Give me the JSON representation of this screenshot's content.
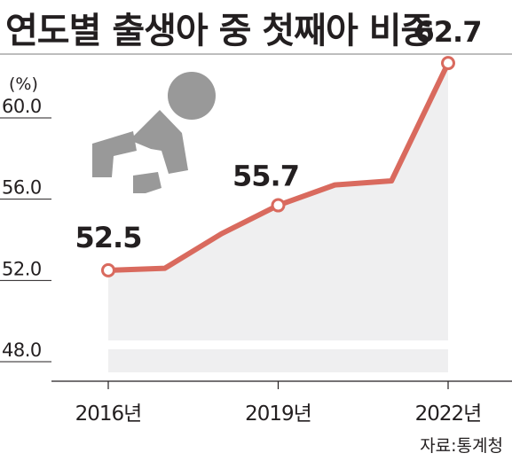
{
  "title": "연도별 출생아 중 첫째아 비중",
  "source": "자료:통계청",
  "icon": "baby-crawling-icon",
  "colors": {
    "line": "#d96a5e",
    "area": "#efeff0",
    "marker_fill": "#ffffff",
    "icon": "#999999",
    "text": "#231f20"
  },
  "chart_data": {
    "type": "area",
    "unit_label": "(%)",
    "x": [
      "2016",
      "2017",
      "2018",
      "2019",
      "2020",
      "2021",
      "2022"
    ],
    "values": [
      52.5,
      52.6,
      54.3,
      55.7,
      56.7,
      56.9,
      62.7
    ],
    "y_ticks": [
      "60.0",
      "56.0",
      "52.0",
      "48.0"
    ],
    "x_tick_labels": [
      "2016년",
      "2019년",
      "2022년"
    ],
    "labels": [
      {
        "x": "2016",
        "text": "52.5"
      },
      {
        "x": "2019",
        "text": "55.7"
      },
      {
        "x": "2022",
        "text": "62.7"
      }
    ],
    "ylim": [
      48,
      60
    ],
    "axis_break": true,
    "grid": false
  }
}
